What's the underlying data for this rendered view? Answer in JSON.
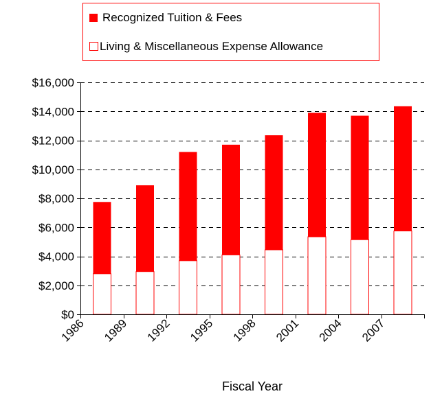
{
  "chart_data": {
    "type": "bar",
    "stacked": true,
    "categories": [
      "1986",
      "1989",
      "1992",
      "1995",
      "1998",
      "2001",
      "2004",
      "2007"
    ],
    "series": [
      {
        "name": "Living & Miscellaneous Expense Allowance",
        "values": [
          2800,
          2950,
          3700,
          4100,
          4450,
          5350,
          5150,
          5750
        ],
        "color": "#ffffff",
        "stroke": "#ff0000"
      },
      {
        "name": "Recognized Tuition & Fees",
        "values": [
          4950,
          5950,
          7500,
          7600,
          7900,
          8550,
          8550,
          8600
        ],
        "color": "#ff0000",
        "stroke": "#000000"
      }
    ],
    "xlabel": "Fiscal Year",
    "ylabel": "",
    "ylim": [
      0,
      16000
    ],
    "yticks": [
      0,
      2000,
      4000,
      6000,
      8000,
      10000,
      12000,
      14000,
      16000
    ],
    "ytick_labels": [
      "$0",
      "$2,000",
      "$4,000",
      "$6,000",
      "$8,000",
      "$10,000",
      "$12,000",
      "$14,000",
      "$16,000"
    ],
    "grid": "horizontal-dashed",
    "legend": {
      "position": "top",
      "entries": [
        "Recognized Tuition & Fees",
        "Living & Miscellaneous Expense Allowance"
      ],
      "border_color": "#ff0000"
    }
  }
}
